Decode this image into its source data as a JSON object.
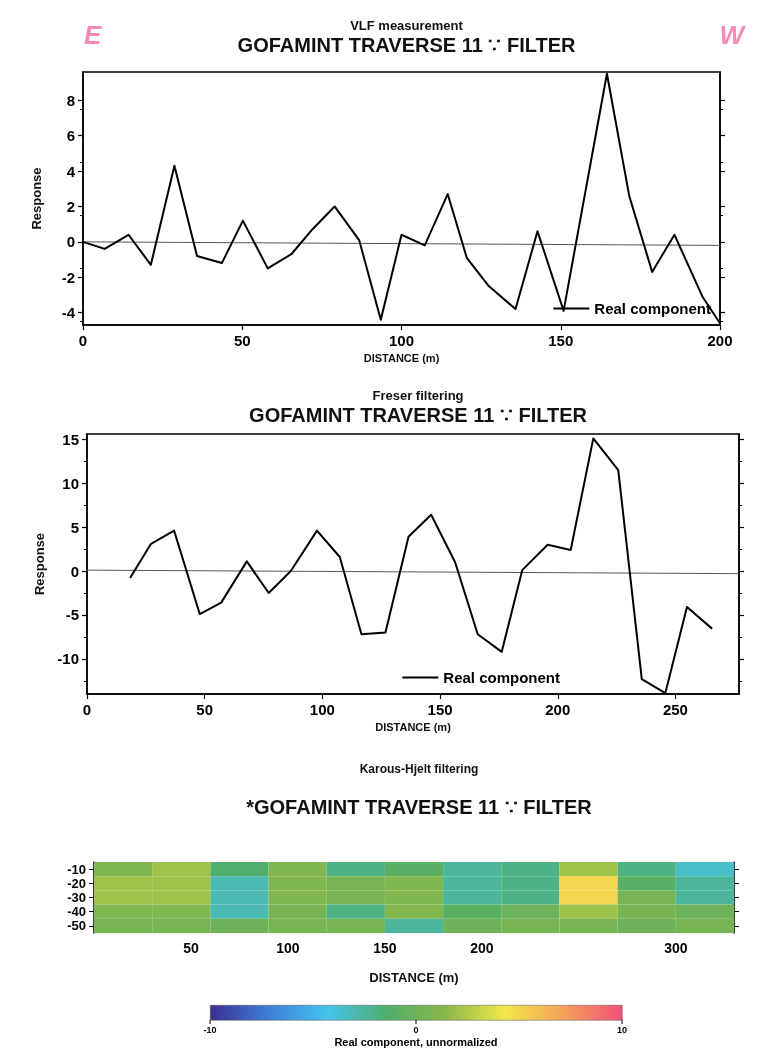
{
  "chart_data": [
    {
      "type": "line",
      "subtitle": "VLF measurement",
      "title": "GOFAMINT TRAVERSE 11 ∵ FILTER",
      "xlabel": "DISTANCE (m)",
      "ylabel": "Response",
      "annotations": [
        "E",
        "W"
      ],
      "xlim": [
        0,
        200
      ],
      "xticks": [
        0,
        50,
        100,
        150,
        200
      ],
      "ylim": [
        -4.7,
        9.6
      ],
      "yticks": [
        -4,
        -2,
        0,
        2,
        4,
        6,
        8
      ],
      "grid": false,
      "legend": "bottom right",
      "marker": "none",
      "series": [
        {
          "name": "Real component",
          "color": "#000000",
          "x": [
            0,
            6.8,
            14.3,
            21.3,
            28.7,
            35.8,
            43.6,
            50.2,
            58,
            65.4,
            72,
            79,
            86.7,
            93.5,
            100,
            107.3,
            114.5,
            120.5,
            127.4,
            135.8,
            142.7,
            150.9,
            164.5,
            171.5,
            178.7,
            185.7,
            194.5,
            200
          ],
          "values": [
            0,
            -0.4,
            0.4,
            -1.3,
            4.3,
            -0.8,
            -1.2,
            1.2,
            -1.5,
            -0.7,
            0.7,
            2.0,
            0.1,
            -4.4,
            0.4,
            -0.2,
            2.7,
            -0.9,
            -2.5,
            -3.8,
            0.6,
            -3.9,
            9.5,
            2.6,
            -1.7,
            0.4,
            -3.1,
            -4.6
          ]
        },
        {
          "color": "#555555",
          "x": [
            0,
            200
          ],
          "values": [
            0,
            -0.2
          ]
        }
      ]
    },
    {
      "type": "line",
      "subtitle": "Freser filtering",
      "title": "GOFAMINT TRAVERSE 11 ∵ FILTER",
      "xlabel": "DISTANCE (m)",
      "ylabel": "Response",
      "xlim": [
        0,
        277
      ],
      "xticks": [
        0,
        50,
        100,
        150,
        200,
        250
      ],
      "ylim": [
        -14,
        15.6
      ],
      "yticks": [
        -10,
        -5,
        0,
        5,
        10,
        15
      ],
      "grid": false,
      "legend": "bottom right",
      "marker": "none",
      "series": [
        {
          "name": "Real component",
          "color": "#000000",
          "x": [
            18.5,
            27.2,
            37,
            47.9,
            57,
            67.9,
            77.2,
            86.6,
            97.7,
            107.4,
            116.6,
            126.8,
            136.6,
            146.2,
            156.4,
            166,
            176.2,
            184.9,
            195.7,
            205.5,
            215.1,
            225.7,
            235.7,
            245.7,
            254.9,
            265.3
          ],
          "values": [
            -0.7,
            3.1,
            4.6,
            -4.9,
            -3.6,
            1.1,
            -2.5,
            0,
            4.6,
            1.6,
            -7.2,
            -7,
            3.9,
            6.4,
            1,
            -7.2,
            -9.2,
            0.1,
            3,
            2.4,
            15.1,
            11.5,
            -12.3,
            -13.9,
            -4.1,
            -6.5
          ]
        },
        {
          "color": "#555555",
          "x": [
            0,
            277
          ],
          "values": [
            0.1,
            -0.3
          ]
        }
      ]
    },
    {
      "type": "heatmap",
      "subtitle": "Karous-Hjelt filtering",
      "title": "*GOFAMINT TRAVERSE 11 ∵ FILTER",
      "xlabel": "DISTANCE (m)",
      "clabel": "Real component, unnormalized",
      "x": [
        15,
        45,
        75,
        105,
        135,
        165,
        195,
        225,
        255,
        285,
        315
      ],
      "xlim": [
        0,
        330
      ],
      "xticks": [
        50,
        100,
        150,
        200,
        300
      ],
      "y_categories": [
        "-10",
        "-20",
        "-30",
        "-40",
        "-50"
      ],
      "clim": [
        -10,
        10
      ],
      "cticks": [
        -10,
        0,
        10
      ],
      "cells": [
        [
          1,
          2,
          -1.5,
          1,
          -2,
          -1,
          -2.5,
          -2,
          2,
          -2,
          -3.5
        ],
        [
          2,
          2,
          -3,
          1,
          0.5,
          1,
          -2.5,
          -2,
          5,
          -1,
          -2.5
        ],
        [
          2,
          2,
          -3,
          1,
          0.5,
          1,
          -2.5,
          -2,
          5,
          0.5,
          -2.5
        ],
        [
          1,
          1,
          -3,
          0.5,
          -2,
          1,
          -1,
          0,
          2,
          0.5,
          0
        ],
        [
          0.5,
          0.5,
          0,
          0.5,
          0.5,
          -2.5,
          0,
          0.5,
          0.5,
          0,
          0.5
        ]
      ]
    }
  ]
}
